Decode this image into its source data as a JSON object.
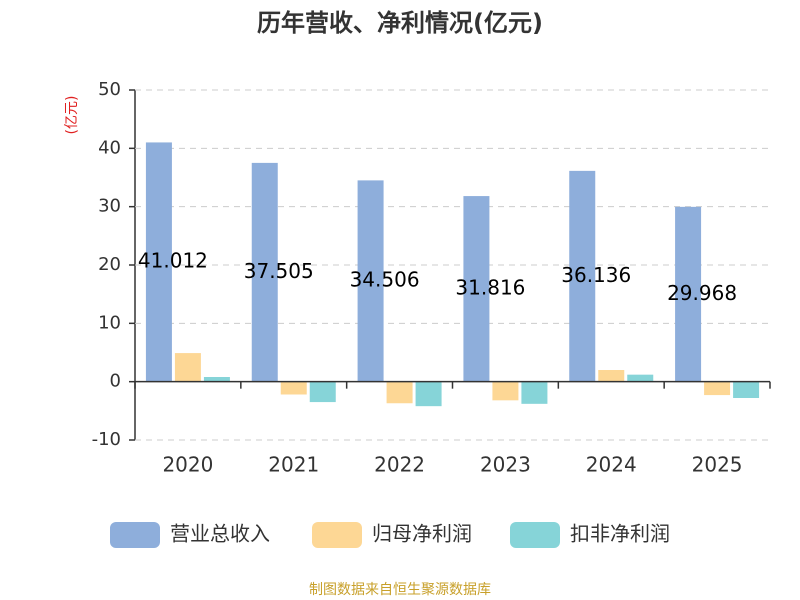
{
  "chart_data": {
    "type": "bar",
    "title": "历年营收、净利情况(亿元)",
    "y_label": "(亿元)",
    "categories": [
      "2020",
      "2021",
      "2022",
      "2023",
      "2024",
      "2025"
    ],
    "series": [
      {
        "name": "营业总收入",
        "color": "#8eaedb",
        "labels": true,
        "values": [
          41.012,
          37.505,
          34.506,
          31.816,
          36.136,
          29.968
        ]
      },
      {
        "name": "归母净利润",
        "color": "#fdd795",
        "labels": false,
        "values": [
          4.9,
          -2.2,
          -3.7,
          -3.2,
          2.0,
          -2.3
        ]
      },
      {
        "name": "扣非净利润",
        "color": "#86d4d8",
        "labels": false,
        "values": [
          0.8,
          -3.5,
          -4.2,
          -3.8,
          1.2,
          -2.8
        ]
      }
    ],
    "ylim": [
      -10,
      50
    ],
    "yticks": [
      -10,
      0,
      10,
      20,
      30,
      40,
      50
    ],
    "grid": true,
    "source": "制图数据来自恒生聚源数据库"
  }
}
